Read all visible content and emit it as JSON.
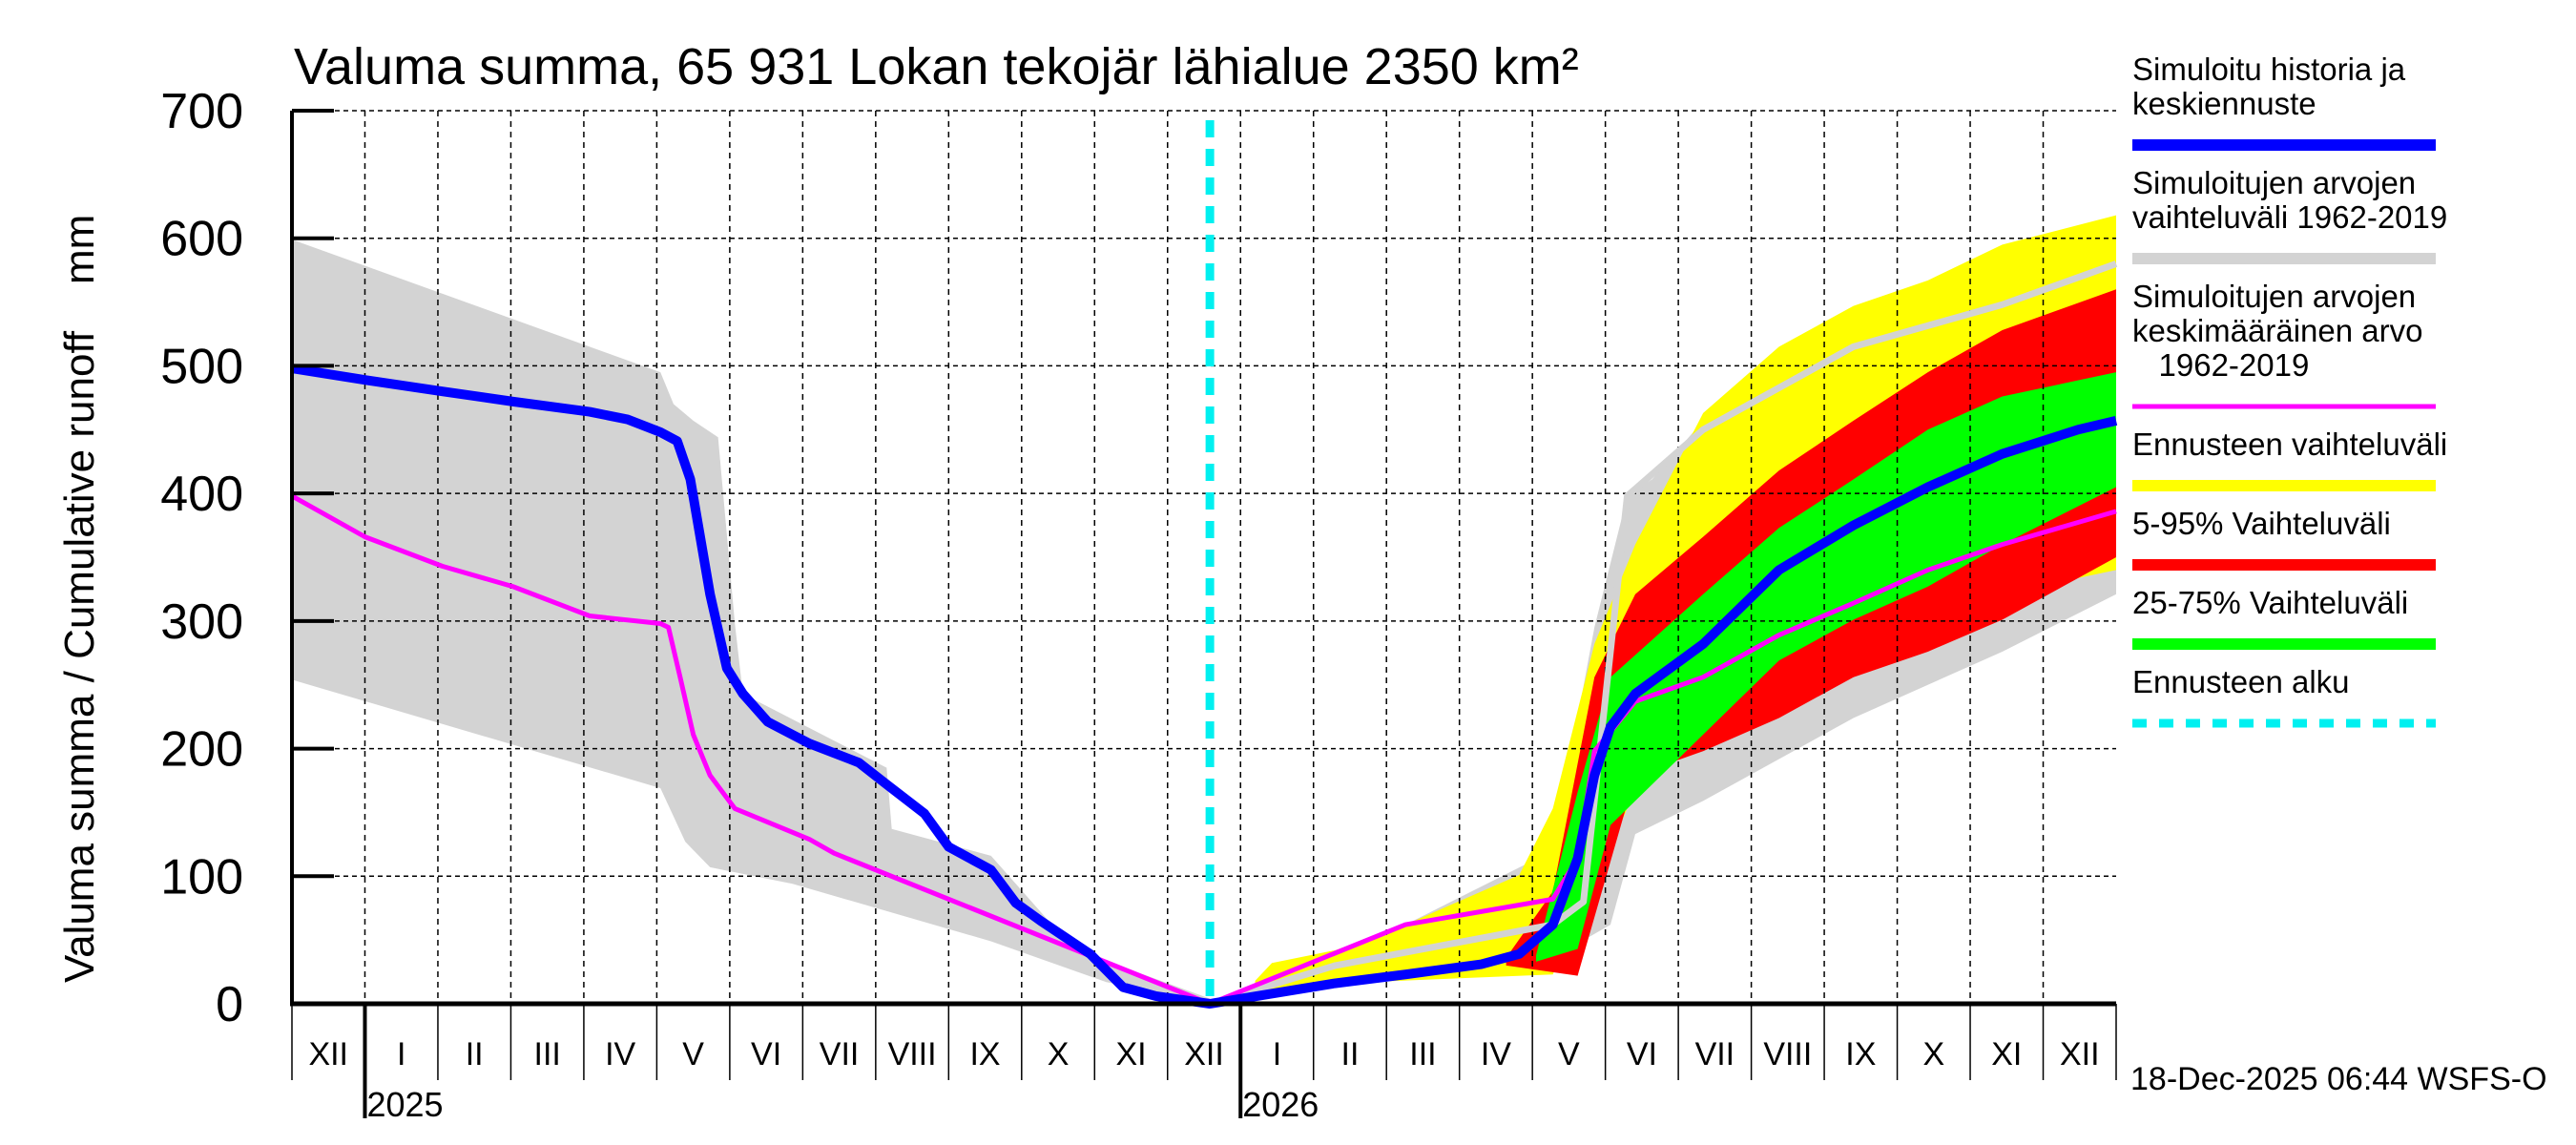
{
  "chart_data": {
    "type": "area",
    "title": "Valuma summa, 65 931 Lokan tekojär lähialue 2350 km²",
    "ylabel": "Valuma summa / Cumulative runoff    mm",
    "xlabel": "",
    "ylim": [
      0,
      700
    ],
    "yticks": [
      0,
      100,
      200,
      300,
      400,
      500,
      600,
      700
    ],
    "x_unit": "months since 1 Dec 2024",
    "xlim": [
      0,
      25
    ],
    "month_labels": [
      "XII",
      "I",
      "II",
      "III",
      "IV",
      "V",
      "VI",
      "VII",
      "VIII",
      "IX",
      "X",
      "XI",
      "XII",
      "I",
      "II",
      "III",
      "IV",
      "V",
      "VI",
      "VII",
      "VIII",
      "IX",
      "X",
      "XI",
      "XII"
    ],
    "year_labels": [
      {
        "label": "2025",
        "month": 1
      },
      {
        "label": "2026",
        "month": 13
      }
    ],
    "forecast_start_month": 12.58,
    "grid": true,
    "legend_position": "right",
    "timestamp": "18-Dec-2025 06:44 WSFS-O",
    "colors": {
      "history_band": "#d3d3d3",
      "sim_median": "#0000ff",
      "sim_mean": "#ff00ff",
      "forecast_range": "#ffff00",
      "p5_95": "#ff0000",
      "p25_75": "#00ff00",
      "forecast_start": "#00f0f0",
      "sim_range_line": "#d3d3d3"
    },
    "series": [
      {
        "name": "Simuloitujen arvojen vaihteluväli 1962-2019 (history)",
        "kind": "band",
        "color_key": "history_band",
        "upper": [
          [
            0,
            599
          ],
          [
            5.05,
            495
          ],
          [
            5.23,
            470
          ],
          [
            5.5,
            457
          ],
          [
            5.84,
            444
          ],
          [
            6.07,
            298
          ],
          [
            6.18,
            243
          ],
          [
            8.15,
            185
          ],
          [
            8.22,
            137
          ],
          [
            9.58,
            116
          ],
          [
            10.71,
            43
          ],
          [
            12.58,
            4
          ]
        ],
        "lower": [
          [
            0,
            254
          ],
          [
            5.05,
            169
          ],
          [
            5.39,
            127
          ],
          [
            5.73,
            107
          ],
          [
            6.86,
            94
          ],
          [
            9.58,
            49
          ],
          [
            11.16,
            17
          ],
          [
            12.58,
            0
          ]
        ]
      },
      {
        "name": "Simuloitujen arvojen vaihteluväli 1962-2019 (forecast)",
        "kind": "band",
        "color_key": "history_band",
        "upper": [
          [
            12.58,
            0
          ],
          [
            14.29,
            36
          ],
          [
            15.26,
            62
          ],
          [
            17.28,
            120
          ],
          [
            17.85,
            295
          ],
          [
            18.3,
            398
          ],
          [
            18.64,
            411
          ],
          [
            19.34,
            457
          ],
          [
            20.38,
            495
          ],
          [
            21.4,
            521
          ],
          [
            22.42,
            547
          ],
          [
            23.44,
            573
          ],
          [
            25,
            603
          ]
        ],
        "lower": [
          [
            12.58,
            0
          ],
          [
            17.28,
            36
          ],
          [
            18.07,
            62
          ],
          [
            18.41,
            133
          ],
          [
            19.34,
            159
          ],
          [
            21.4,
            224
          ],
          [
            23.44,
            276
          ],
          [
            25,
            321
          ]
        ]
      },
      {
        "name": "Ennusteen vaihteluväli",
        "kind": "band",
        "color_key": "forecast_range",
        "upper": [
          [
            13.2,
            18
          ],
          [
            13.43,
            32
          ],
          [
            14.3,
            42
          ],
          [
            15.26,
            62
          ],
          [
            16.82,
            101
          ],
          [
            17.28,
            153
          ],
          [
            17.85,
            282
          ],
          [
            18.41,
            360
          ],
          [
            19.34,
            463
          ],
          [
            20.38,
            515
          ],
          [
            21.4,
            547
          ],
          [
            22.42,
            567
          ],
          [
            23.44,
            595
          ],
          [
            25,
            618
          ]
        ],
        "lower": [
          [
            13.2,
            8
          ],
          [
            14.3,
            16
          ],
          [
            17.28,
            23
          ],
          [
            18.3,
            153
          ],
          [
            18.64,
            191
          ],
          [
            19.34,
            217
          ],
          [
            20.38,
            243
          ],
          [
            21.4,
            263
          ],
          [
            22.42,
            289
          ],
          [
            23.44,
            321
          ],
          [
            25,
            340
          ]
        ]
      },
      {
        "name": "5-95% Vaihteluväli",
        "kind": "band",
        "color_key": "p5_95",
        "upper": [
          [
            16.64,
            36
          ],
          [
            17.28,
            88
          ],
          [
            17.85,
            256
          ],
          [
            18.41,
            321
          ],
          [
            19.34,
            366
          ],
          [
            20.38,
            418
          ],
          [
            21.4,
            457
          ],
          [
            22.42,
            495
          ],
          [
            23.44,
            528
          ],
          [
            25,
            560
          ]
        ],
        "lower": [
          [
            16.64,
            30
          ],
          [
            17.62,
            22
          ],
          [
            18.41,
            179
          ],
          [
            19.34,
            198
          ],
          [
            20.38,
            224
          ],
          [
            21.4,
            256
          ],
          [
            22.42,
            276
          ],
          [
            23.44,
            301
          ],
          [
            25,
            350
          ]
        ]
      },
      {
        "name": "25-75% Vaihteluväli",
        "kind": "band",
        "color_key": "p25_75",
        "upper": [
          [
            17.05,
            38
          ],
          [
            17.62,
            166
          ],
          [
            18.07,
            256
          ],
          [
            19.34,
            321
          ],
          [
            20.38,
            373
          ],
          [
            21.4,
            411
          ],
          [
            22.42,
            450
          ],
          [
            23.44,
            476
          ],
          [
            25,
            495
          ]
        ],
        "lower": [
          [
            17.05,
            33
          ],
          [
            17.62,
            43
          ],
          [
            18.07,
            140
          ],
          [
            19.34,
            211
          ],
          [
            20.38,
            269
          ],
          [
            21.4,
            301
          ],
          [
            22.42,
            327
          ],
          [
            23.44,
            360
          ],
          [
            25,
            405
          ]
        ]
      },
      {
        "name": "Simuloitujen arvojen vaihteluväli (upper line)",
        "kind": "line",
        "color_key": "sim_range_line",
        "points": [
          [
            12.58,
            0
          ],
          [
            14.3,
            30
          ],
          [
            17.28,
            62
          ],
          [
            17.7,
            80
          ],
          [
            18.3,
            398
          ],
          [
            19.34,
            450
          ],
          [
            21.4,
            515
          ],
          [
            23.44,
            548
          ],
          [
            25,
            580
          ]
        ]
      },
      {
        "name": "Simuloitujen arvojen keskimääräinen arvo 1962-2019",
        "kind": "line",
        "color_key": "sim_mean",
        "points": [
          [
            0,
            398
          ],
          [
            1,
            366
          ],
          [
            2.06,
            343
          ],
          [
            3.03,
            327
          ],
          [
            4.08,
            304
          ],
          [
            5.05,
            298
          ],
          [
            5.16,
            295
          ],
          [
            5.32,
            256
          ],
          [
            5.5,
            211
          ],
          [
            5.73,
            179
          ],
          [
            6.07,
            153
          ],
          [
            7.09,
            129
          ],
          [
            7.43,
            118
          ],
          [
            12.58,
            0
          ],
          [
            15.26,
            62
          ],
          [
            17.28,
            82
          ],
          [
            17.62,
            114
          ],
          [
            17.85,
            198
          ],
          [
            18.41,
            237
          ],
          [
            19.34,
            256
          ],
          [
            20.38,
            289
          ],
          [
            21.4,
            314
          ],
          [
            22.42,
            340
          ],
          [
            23.44,
            360
          ],
          [
            25,
            386
          ]
        ]
      },
      {
        "name": "Simuloitu historia ja keskiennuste",
        "kind": "line",
        "color_key": "sim_median",
        "points": [
          [
            0,
            498
          ],
          [
            1,
            489
          ],
          [
            2.06,
            480
          ],
          [
            3.03,
            472
          ],
          [
            4.08,
            464
          ],
          [
            4.6,
            458
          ],
          [
            5.05,
            448
          ],
          [
            5.28,
            441
          ],
          [
            5.46,
            411
          ],
          [
            5.73,
            321
          ],
          [
            5.96,
            263
          ],
          [
            6.18,
            243
          ],
          [
            6.52,
            221
          ],
          [
            7.09,
            204
          ],
          [
            7.77,
            189
          ],
          [
            8.15,
            172
          ],
          [
            8.67,
            149
          ],
          [
            9.0,
            123
          ],
          [
            9.58,
            105
          ],
          [
            9.92,
            79
          ],
          [
            10.26,
            65
          ],
          [
            10.94,
            39
          ],
          [
            11.39,
            13
          ],
          [
            11.84,
            6
          ],
          [
            12.58,
            0
          ],
          [
            14.29,
            16
          ],
          [
            15.26,
            23
          ],
          [
            16.3,
            31
          ],
          [
            16.82,
            39
          ],
          [
            17.28,
            62
          ],
          [
            17.62,
            114
          ],
          [
            17.85,
            179
          ],
          [
            18.07,
            217
          ],
          [
            18.41,
            243
          ],
          [
            19.34,
            282
          ],
          [
            20.38,
            340
          ],
          [
            21.4,
            375
          ],
          [
            22.42,
            405
          ],
          [
            23.44,
            431
          ],
          [
            24.48,
            450
          ],
          [
            25,
            457
          ]
        ]
      }
    ],
    "legend": [
      {
        "label_lines": [
          "Simuloitu historia ja",
          "keskiennuste"
        ],
        "color_key": "sim_median",
        "style": "thick"
      },
      {
        "label_lines": [
          "Simuloitujen arvojen",
          "vaihteluväli 1962-2019"
        ],
        "color_key": "history_band",
        "style": "thick"
      },
      {
        "label_lines": [
          "Simuloitujen arvojen",
          "keskimääräinen arvo",
          "   1962-2019"
        ],
        "color_key": "sim_mean",
        "style": "thin"
      },
      {
        "label_lines": [
          "Ennusteen vaihteluväli"
        ],
        "color_key": "forecast_range",
        "style": "thick"
      },
      {
        "label_lines": [
          "5-95% Vaihteluväli"
        ],
        "color_key": "p5_95",
        "style": "thick"
      },
      {
        "label_lines": [
          "25-75% Vaihteluväli"
        ],
        "color_key": "p25_75",
        "style": "thick"
      },
      {
        "label_lines": [
          "Ennusteen alku"
        ],
        "color_key": "forecast_start",
        "style": "dotted"
      }
    ]
  }
}
